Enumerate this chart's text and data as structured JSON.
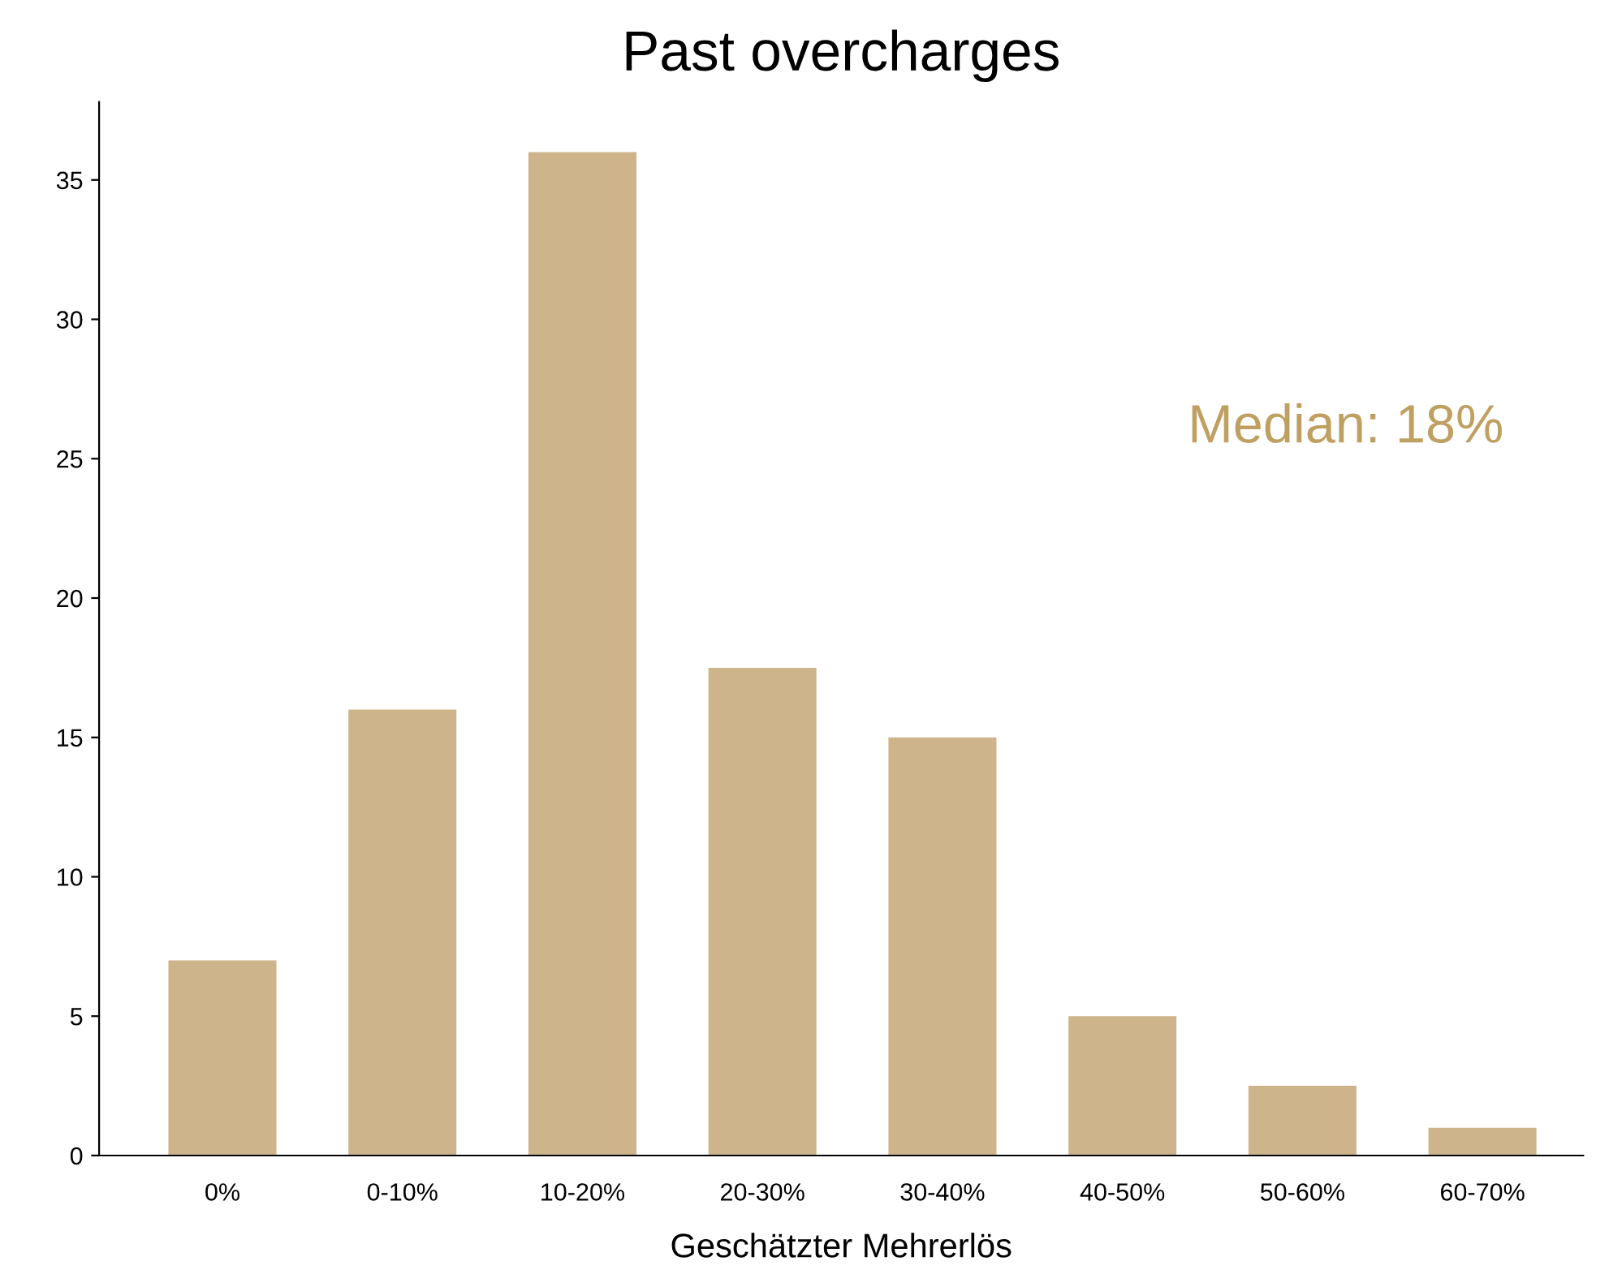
{
  "chart_data": {
    "type": "bar",
    "title": "Past overcharges",
    "xlabel": "Geschätzter Mehrerlös",
    "categories": [
      "0%",
      "0-10%",
      "10-20%",
      "20-30%",
      "30-40%",
      "40-50%",
      "50-60%",
      "60-70%"
    ],
    "values": [
      7,
      16,
      36,
      17.5,
      15,
      5,
      2.5,
      1
    ],
    "color": "#cdb48a",
    "ylim": [
      0,
      37.8
    ],
    "yticks": [
      0,
      5,
      10,
      15,
      20,
      25,
      30,
      35
    ],
    "grid": false,
    "annotations": [
      "Median: 18%"
    ]
  }
}
